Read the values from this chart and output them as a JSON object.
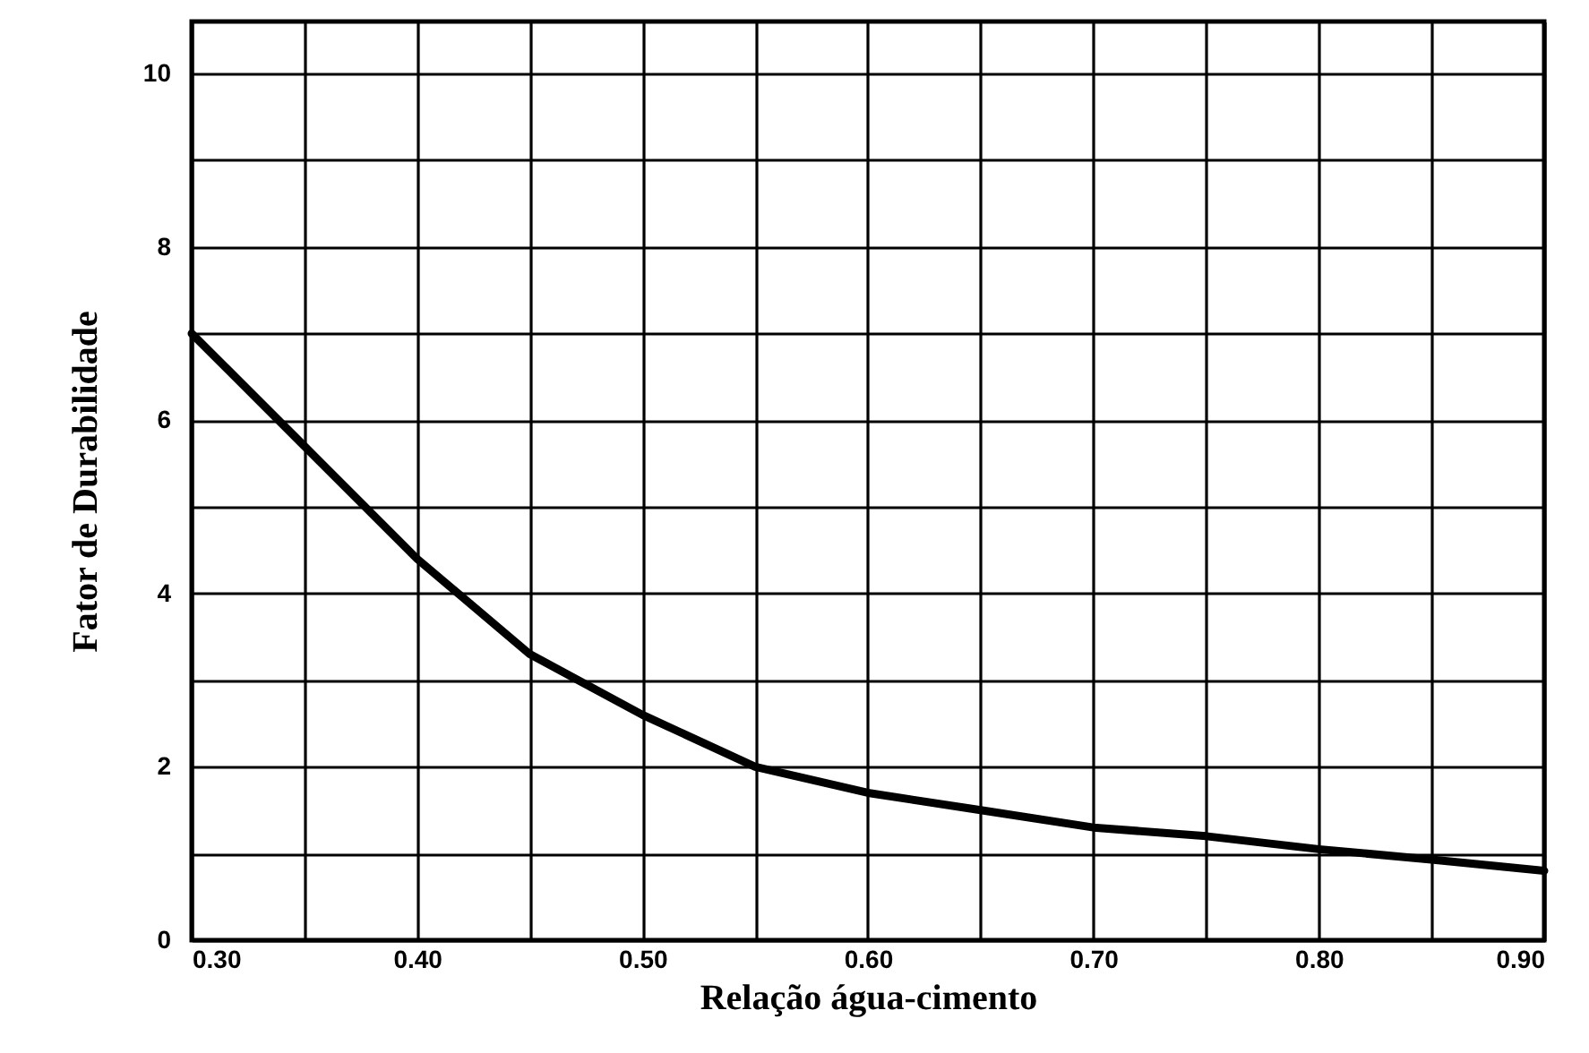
{
  "chart_data": {
    "type": "line",
    "xlabel": "Relação água-cimento",
    "ylabel": "Fator de Durabilidade",
    "x": [
      0.3,
      0.35,
      0.4,
      0.45,
      0.5,
      0.55,
      0.6,
      0.65,
      0.7,
      0.75,
      0.8,
      0.85,
      0.9
    ],
    "series": [
      {
        "color": "#000000",
        "values": [
          7.0,
          5.7,
          4.4,
          3.3,
          2.6,
          2.0,
          1.7,
          1.5,
          1.3,
          1.2,
          1.05,
          0.93,
          0.8
        ]
      }
    ],
    "xlim": [
      0.3,
      0.9
    ],
    "xticks": [
      {
        "value": 0.3,
        "label": "0.30"
      },
      {
        "value": 0.35,
        "label": null
      },
      {
        "value": 0.4,
        "label": "0.40"
      },
      {
        "value": 0.45,
        "label": null
      },
      {
        "value": 0.5,
        "label": "0.50"
      },
      {
        "value": 0.55,
        "label": null
      },
      {
        "value": 0.6,
        "label": "0.60"
      },
      {
        "value": 0.65,
        "label": null
      },
      {
        "value": 0.7,
        "label": "0.70"
      },
      {
        "value": 0.75,
        "label": null
      },
      {
        "value": 0.8,
        "label": "0.80"
      },
      {
        "value": 0.85,
        "label": null
      },
      {
        "value": 0.9,
        "label": "0.90"
      }
    ],
    "ylim": [
      0,
      10.6
    ],
    "yticks": [
      0,
      {
        "value": 1,
        "label": null
      },
      2,
      {
        "value": 3,
        "label": null
      },
      4,
      {
        "value": 5,
        "label": null
      },
      6,
      {
        "value": 7,
        "label": null
      },
      8,
      {
        "value": 9,
        "label": null
      },
      10
    ],
    "grid": true,
    "marker": "none",
    "line_style": "solid"
  }
}
